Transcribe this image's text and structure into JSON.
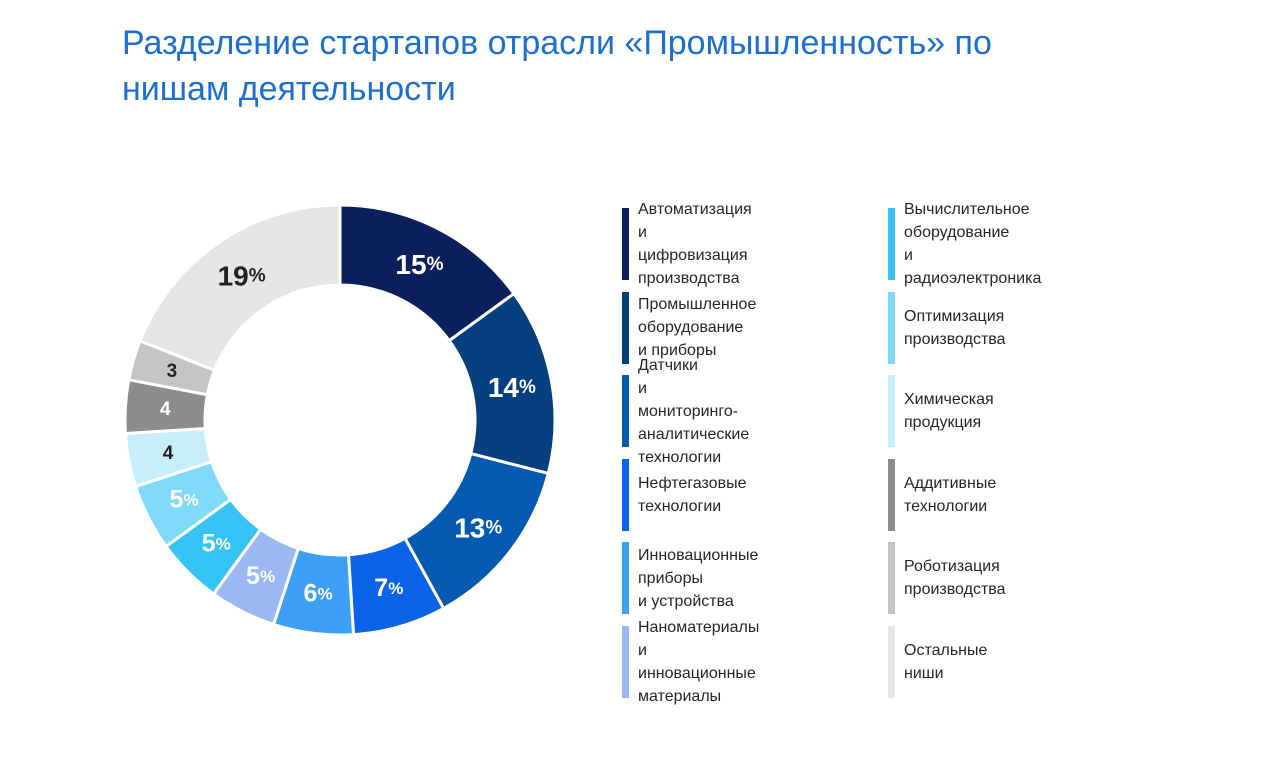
{
  "title": "Разделение стартапов отрасли «Промышленность» по нишам деятельности",
  "chart_data": {
    "type": "pie",
    "variant": "donut",
    "title": "Разделение стартапов отрасли «Промышленность» по нишам деятельности",
    "legend_position": "right",
    "slices": [
      {
        "label": "Автоматизация\nи цифровизация\nпроизводства",
        "value": 15,
        "display": "15",
        "unit": "%",
        "color": "#0a1f5c",
        "label_color": "#ffffff"
      },
      {
        "label": "Промышленное\nоборудование\nи приборы",
        "value": 14,
        "display": "14",
        "unit": "%",
        "color": "#063f7e",
        "label_color": "#ffffff"
      },
      {
        "label": "Датчики\nи мониторинго-\nаналитические технологии",
        "value": 13,
        "display": "13",
        "unit": "%",
        "color": "#0459b0",
        "label_color": "#ffffff"
      },
      {
        "label": "Нефтегазовые технологии",
        "value": 7,
        "display": "7",
        "unit": "%",
        "color": "#0b63e8",
        "label_color": "#ffffff"
      },
      {
        "label": "Инновационные приборы\nи устройства",
        "value": 6,
        "display": "6",
        "unit": "%",
        "color": "#3d9ff5",
        "label_color": "#ffffff"
      },
      {
        "label": "Наноматериалы\nи инновационные\nматериалы",
        "value": 5,
        "display": "5",
        "unit": "%",
        "color": "#9cb8f2",
        "label_color": "#ffffff"
      },
      {
        "label": "Вычислительное\nоборудование\nи радиоэлектроника",
        "value": 5,
        "display": "5",
        "unit": "%",
        "color": "#35c3f5",
        "label_color": "#ffffff"
      },
      {
        "label": "Оптимизация производства",
        "value": 5,
        "display": "5",
        "unit": "%",
        "color": "#7fd9f8",
        "label_color": "#ffffff"
      },
      {
        "label": "Химическая продукция",
        "value": 4,
        "display": "4",
        "unit": "",
        "color": "#c8edfb",
        "label_color": "#222222"
      },
      {
        "label": "Аддитивные технологии",
        "value": 4,
        "display": "4",
        "unit": "",
        "color": "#8c8c8c",
        "label_color": "#ffffff"
      },
      {
        "label": "Роботизация производства",
        "value": 3,
        "display": "3",
        "unit": "",
        "color": "#c4c4c4",
        "label_color": "#222222"
      },
      {
        "label": "Остальные ниши",
        "value": 19,
        "display": "19",
        "unit": "%",
        "color": "#e6e6e6",
        "label_color": "#222222"
      }
    ]
  }
}
